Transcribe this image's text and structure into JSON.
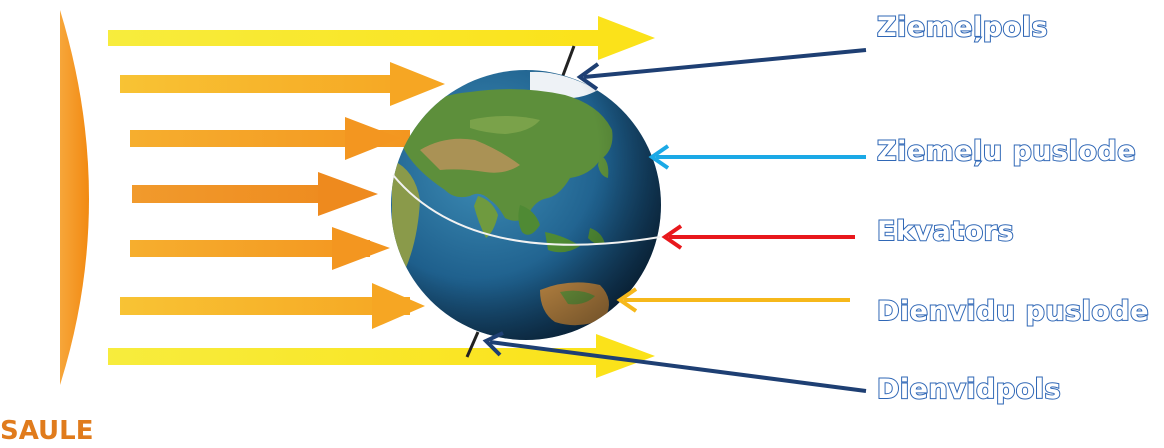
{
  "sun_label": "SAULE",
  "labels": {
    "north_pole": "Ziemeļpols",
    "northern_hemisphere": "Ziemeļu puslode",
    "equator": "Ekvators",
    "southern_hemisphere": "Dienvidu puslode",
    "south_pole": "Dienvidpols"
  },
  "colors": {
    "sun": "#f5921e",
    "label_outline": "#2f67b6",
    "arrow_north_pole": "#1e3f73",
    "arrow_northern_hemisphere": "#1ba9e6",
    "arrow_equator": "#e8181c",
    "arrow_southern_hemisphere": "#f6b81b",
    "arrow_south_pole": "#1e3f73"
  }
}
